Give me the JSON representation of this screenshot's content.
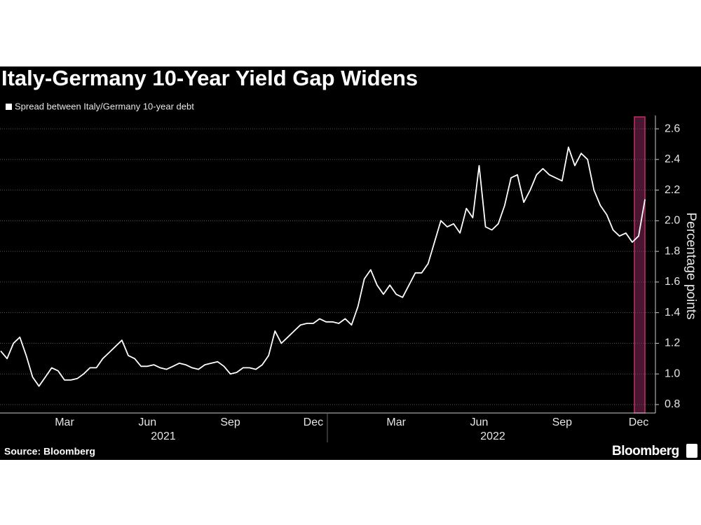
{
  "chart_data": {
    "type": "line",
    "title": "Italy-Germany 10-Year Yield Gap Widens",
    "y_axis_label": "Percentage points",
    "source": "Source: Bloomberg",
    "brand": "Bloomberg",
    "x_group_labels": [
      "2021",
      "2022"
    ],
    "categories": [
      null,
      null,
      null,
      null,
      null,
      null,
      null,
      null,
      null,
      null,
      "Mar",
      null,
      null,
      null,
      null,
      null,
      null,
      null,
      null,
      null,
      null,
      null,
      null,
      "Jun",
      null,
      null,
      null,
      null,
      null,
      null,
      null,
      null,
      null,
      null,
      null,
      null,
      "Sep",
      null,
      null,
      null,
      null,
      null,
      null,
      null,
      null,
      null,
      null,
      null,
      null,
      "Dec",
      null,
      null,
      null,
      null,
      null,
      null,
      null,
      null,
      null,
      null,
      null,
      null,
      "Mar",
      null,
      null,
      null,
      null,
      null,
      null,
      null,
      null,
      null,
      null,
      null,
      null,
      "Jun",
      null,
      null,
      null,
      null,
      null,
      null,
      null,
      null,
      null,
      null,
      null,
      null,
      "Sep",
      null,
      null,
      null,
      null,
      null,
      null,
      null,
      null,
      null,
      null,
      null,
      "Dec",
      null
    ],
    "series": [
      {
        "name": "Spread between Italy/Germany 10-year debt",
        "color": "#ffffff",
        "values": [
          1.15,
          1.1,
          1.2,
          1.24,
          1.12,
          0.98,
          0.92,
          0.98,
          1.04,
          1.02,
          0.96,
          0.96,
          0.97,
          1.0,
          1.04,
          1.04,
          1.1,
          1.14,
          1.18,
          1.22,
          1.12,
          1.1,
          1.05,
          1.05,
          1.06,
          1.04,
          1.03,
          1.05,
          1.07,
          1.06,
          1.04,
          1.03,
          1.06,
          1.07,
          1.08,
          1.05,
          1.0,
          1.01,
          1.04,
          1.04,
          1.03,
          1.06,
          1.12,
          1.28,
          1.2,
          1.24,
          1.28,
          1.32,
          1.33,
          1.33,
          1.36,
          1.34,
          1.34,
          1.33,
          1.36,
          1.32,
          1.44,
          1.62,
          1.68,
          1.58,
          1.52,
          1.58,
          1.52,
          1.5,
          1.58,
          1.66,
          1.66,
          1.72,
          1.86,
          2.0,
          1.96,
          1.98,
          1.92,
          2.08,
          2.02,
          2.36,
          1.96,
          1.94,
          1.98,
          2.1,
          2.28,
          2.3,
          2.12,
          2.2,
          2.3,
          2.34,
          2.3,
          2.28,
          2.26,
          2.48,
          2.36,
          2.44,
          2.4,
          2.2,
          2.1,
          2.04,
          1.94,
          1.9,
          1.92,
          1.86,
          1.9,
          2.14
        ]
      }
    ],
    "ylim": [
      0.745,
      2.687
    ],
    "yticks": [
      0.8,
      {
        "value": 1,
        "label": "1.0"
      },
      1.2,
      1.4,
      1.6,
      1.8,
      {
        "value": 2,
        "label": "2.0"
      },
      2.2,
      2.4,
      2.6
    ],
    "grid": true
  }
}
